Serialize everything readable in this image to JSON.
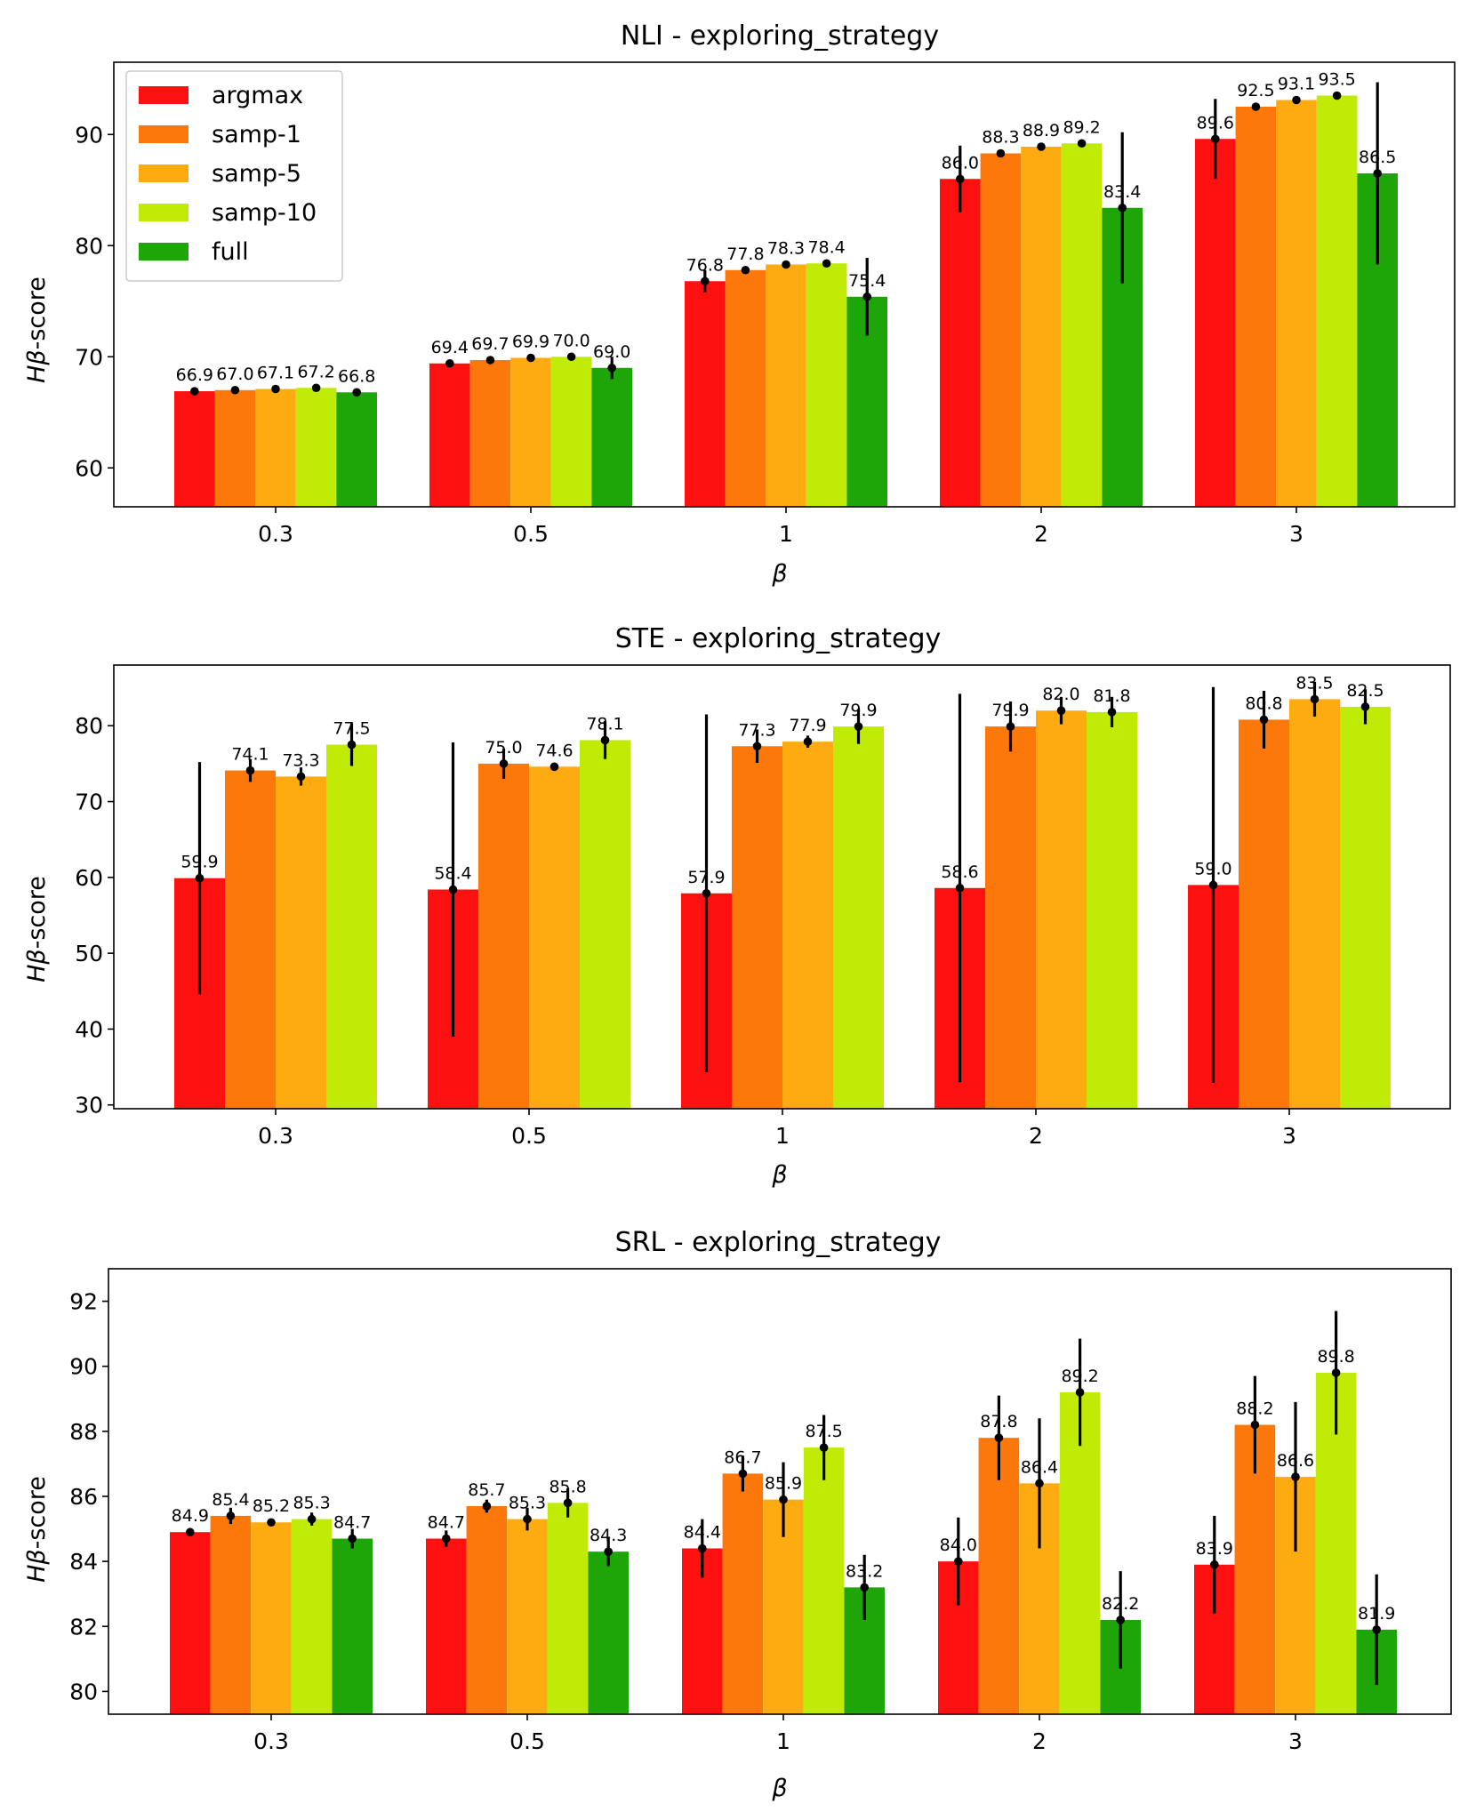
{
  "chart_data": [
    {
      "type": "bar",
      "title": "NLI - exploring_strategy",
      "xlabel": "β",
      "ylabel_italic": "Hβ",
      "ylabel_rest": "-score",
      "categories": [
        "0.3",
        "0.5",
        "1",
        "2",
        "3"
      ],
      "ylim": [
        56.5,
        96.5
      ],
      "yticks": [
        60,
        70,
        80,
        90
      ],
      "legend": "top-left",
      "series": [
        {
          "name": "argmax",
          "color": "#fc1010",
          "values": [
            66.9,
            69.4,
            76.8,
            86.0,
            89.6
          ],
          "labels": [
            "66.9",
            "69.4",
            "76.8",
            "86.0",
            "89.6"
          ],
          "errors": [
            0.2,
            0.3,
            1.0,
            3.0,
            3.6
          ]
        },
        {
          "name": "samp-1",
          "color": "#fc780b",
          "values": [
            67.0,
            69.7,
            77.8,
            88.3,
            92.5
          ],
          "labels": [
            "67.0",
            "69.7",
            "77.8",
            "88.3",
            "92.5"
          ],
          "errors": [
            0.2,
            0.2,
            0.2,
            0.2,
            0.3
          ]
        },
        {
          "name": "samp-5",
          "color": "#fdab10",
          "values": [
            67.1,
            69.9,
            78.3,
            88.9,
            93.1
          ],
          "labels": [
            "67.1",
            "69.9",
            "78.3",
            "88.9",
            "93.1"
          ],
          "errors": [
            0.2,
            0.2,
            0.2,
            0.2,
            0.2
          ]
        },
        {
          "name": "samp-10",
          "color": "#c0eb06",
          "values": [
            67.2,
            70.0,
            78.4,
            89.2,
            93.5
          ],
          "labels": [
            "67.2",
            "70.0",
            "78.4",
            "89.2",
            "93.5"
          ],
          "errors": [
            0.2,
            0.2,
            0.2,
            0.2,
            0.2
          ]
        },
        {
          "name": "full",
          "color": "#1ea608",
          "values": [
            66.8,
            69.0,
            75.4,
            83.4,
            86.5
          ],
          "labels": [
            "66.8",
            "69.0",
            "75.4",
            "83.4",
            "86.5"
          ],
          "errors": [
            0.3,
            1.0,
            3.5,
            6.8,
            8.2
          ]
        }
      ]
    },
    {
      "type": "bar",
      "title": "STE - exploring_strategy",
      "xlabel": "β",
      "ylabel_italic": "Hβ",
      "ylabel_rest": "-score",
      "categories": [
        "0.3",
        "0.5",
        "1",
        "2",
        "3"
      ],
      "ylim": [
        29.5,
        88
      ],
      "yticks": [
        30,
        40,
        50,
        60,
        70,
        80
      ],
      "series": [
        {
          "name": "argmax",
          "color": "#fc1010",
          "values": [
            59.9,
            58.4,
            57.9,
            58.6,
            59.0
          ],
          "labels": [
            "59.9",
            "58.4",
            "57.9",
            "58.6",
            "59.0"
          ],
          "errors": [
            15.3,
            19.4,
            23.6,
            25.6,
            26.1
          ]
        },
        {
          "name": "samp-1",
          "color": "#fc780b",
          "values": [
            74.1,
            75.0,
            77.3,
            79.9,
            80.8
          ],
          "labels": [
            "74.1",
            "75.0",
            "77.3",
            "79.9",
            "80.8"
          ],
          "errors": [
            1.5,
            2.0,
            2.2,
            3.3,
            3.8
          ]
        },
        {
          "name": "samp-5",
          "color": "#fdab10",
          "values": [
            73.3,
            74.6,
            77.9,
            82.0,
            83.5
          ],
          "labels": [
            "73.3",
            "74.6",
            "77.9",
            "82.0",
            "83.5"
          ],
          "errors": [
            1.2,
            0.5,
            0.8,
            1.8,
            2.3
          ]
        },
        {
          "name": "samp-10",
          "color": "#c0eb06",
          "values": [
            77.5,
            78.1,
            79.9,
            81.8,
            82.5
          ],
          "labels": [
            "77.5",
            "78.1",
            "79.9",
            "81.8",
            "82.5"
          ],
          "errors": [
            2.8,
            2.5,
            2.3,
            2.0,
            2.3
          ]
        }
      ]
    },
    {
      "type": "bar",
      "title": "SRL - exploring_strategy",
      "xlabel": "β",
      "ylabel_italic": "Hβ",
      "ylabel_rest": "-score",
      "categories": [
        "0.3",
        "0.5",
        "1",
        "2",
        "3"
      ],
      "ylim": [
        79.3,
        93.0
      ],
      "yticks": [
        80,
        82,
        84,
        86,
        88,
        90,
        92
      ],
      "series": [
        {
          "name": "argmax",
          "color": "#fc1010",
          "values": [
            84.9,
            84.7,
            84.4,
            84.0,
            83.9
          ],
          "labels": [
            "84.9",
            "84.7",
            "84.4",
            "84.0",
            "83.9"
          ],
          "errors": [
            0.1,
            0.25,
            0.9,
            1.35,
            1.5
          ]
        },
        {
          "name": "samp-1",
          "color": "#fc780b",
          "values": [
            85.4,
            85.7,
            86.7,
            87.8,
            88.2
          ],
          "labels": [
            "85.4",
            "85.7",
            "86.7",
            "87.8",
            "88.2"
          ],
          "errors": [
            0.25,
            0.2,
            0.55,
            1.3,
            1.5
          ]
        },
        {
          "name": "samp-5",
          "color": "#fdab10",
          "values": [
            85.2,
            85.3,
            85.9,
            86.4,
            86.6
          ],
          "labels": [
            "85.2",
            "85.3",
            "85.9",
            "86.4",
            "86.6"
          ],
          "errors": [
            0.08,
            0.35,
            1.15,
            2.0,
            2.3
          ]
        },
        {
          "name": "samp-10",
          "color": "#c0eb06",
          "values": [
            85.3,
            85.8,
            87.5,
            89.2,
            89.8
          ],
          "labels": [
            "85.3",
            "85.8",
            "87.5",
            "89.2",
            "89.8"
          ],
          "errors": [
            0.2,
            0.45,
            1.0,
            1.65,
            1.9
          ]
        },
        {
          "name": "full",
          "color": "#1ea608",
          "values": [
            84.7,
            84.3,
            83.2,
            82.2,
            81.9
          ],
          "labels": [
            "84.7",
            "84.3",
            "83.2",
            "82.2",
            "81.9"
          ],
          "errors": [
            0.3,
            0.45,
            1.0,
            1.5,
            1.7
          ]
        }
      ]
    }
  ]
}
